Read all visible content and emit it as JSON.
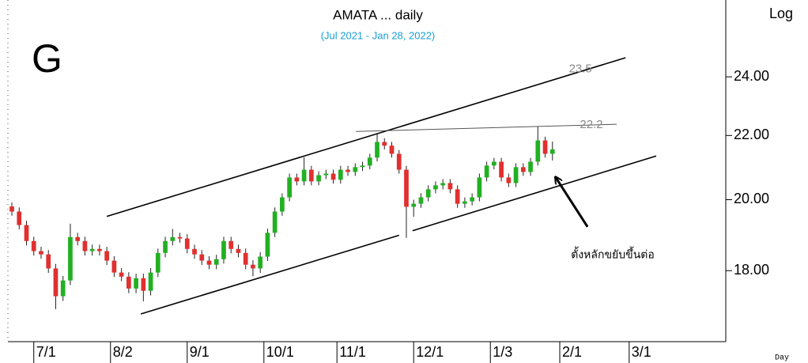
{
  "chart_data": {
    "type": "candlestick",
    "title": "AMATA ... daily",
    "subtitle": "(Jul 2021 - Jan 28, 2022)",
    "panel_label": "G",
    "scale_label": "Log",
    "x_axis_label": "Day",
    "log_scale": true,
    "up_color": "#22b022",
    "down_color": "#e0302f",
    "ylim": [
      16.2,
      26.9
    ],
    "yticks": [
      {
        "value": 18,
        "label": "18.00"
      },
      {
        "value": 20,
        "label": "20.00"
      },
      {
        "value": 22,
        "label": "22.00"
      },
      {
        "value": 24,
        "label": "24.00"
      }
    ],
    "xlim": [
      -3.25,
      195.45
    ],
    "xticks": [
      {
        "value": 6,
        "label": "7/1"
      },
      {
        "value": 27,
        "label": "8/2"
      },
      {
        "value": 48,
        "label": "9/1"
      },
      {
        "value": 69,
        "label": "10/1"
      },
      {
        "value": 89,
        "label": "11/1"
      },
      {
        "value": 110,
        "label": "12/1"
      },
      {
        "value": 131,
        "label": "1/3"
      },
      {
        "value": 150,
        "label": "2/1"
      },
      {
        "value": 169,
        "label": "3/1"
      }
    ],
    "x": [
      0,
      2,
      4,
      6,
      8,
      10,
      12,
      14,
      16,
      18,
      20,
      22,
      24,
      26,
      28,
      30,
      32,
      34,
      36,
      38,
      40,
      42,
      44,
      46,
      48,
      50,
      52,
      54,
      56,
      58,
      60,
      62,
      64,
      66,
      68,
      70,
      72,
      74,
      76,
      78,
      80,
      82,
      84,
      86,
      88,
      90,
      92,
      94,
      96,
      98,
      100,
      102,
      104,
      106,
      108,
      110,
      112,
      114,
      116,
      118,
      120,
      122,
      124,
      126,
      128,
      130,
      132,
      134,
      136,
      138,
      140,
      142,
      144,
      146,
      148
    ],
    "open": [
      19.8,
      19.65,
      19.26,
      18.81,
      18.53,
      18.44,
      18.06,
      17.33,
      17.74,
      18.92,
      18.81,
      18.53,
      18.59,
      18.53,
      18.27,
      17.95,
      17.84,
      17.53,
      17.8,
      17.47,
      17.95,
      18.48,
      18.81,
      18.92,
      18.88,
      18.59,
      18.44,
      18.27,
      18.16,
      18.31,
      18.81,
      18.59,
      18.48,
      18.16,
      18.06,
      18.38,
      19.04,
      19.65,
      20.07,
      20.67,
      20.55,
      20.91,
      20.55,
      20.74,
      20.79,
      20.6,
      20.91,
      20.84,
      20.99,
      21.04,
      21.29,
      21.79,
      21.67,
      21.41,
      20.91,
      19.79,
      19.88,
      20.07,
      20.31,
      20.43,
      20.5,
      20.31,
      19.88,
      19.95,
      20.07,
      20.67,
      21.04,
      21.16,
      20.67,
      20.5,
      20.99,
      20.84,
      21.16,
      21.84,
      21.41
    ],
    "high": [
      19.92,
      19.77,
      19.38,
      18.93,
      18.65,
      18.56,
      18.18,
      17.86,
      19.3,
      19.04,
      18.93,
      18.71,
      18.71,
      18.65,
      18.39,
      18.07,
      17.96,
      17.92,
      17.92,
      18.07,
      18.6,
      18.93,
      19.15,
      19.04,
      19.0,
      18.71,
      18.56,
      18.39,
      18.43,
      18.93,
      18.93,
      18.71,
      18.6,
      18.28,
      18.5,
      19.16,
      19.77,
      20.19,
      20.79,
      20.79,
      21.3,
      21.03,
      20.86,
      20.91,
      20.91,
      21.03,
      21.03,
      21.11,
      21.16,
      21.41,
      22.05,
      21.91,
      21.79,
      21.53,
      21.03,
      20.0,
      20.19,
      20.43,
      20.55,
      20.62,
      20.62,
      20.43,
      20.07,
      20.19,
      20.79,
      21.16,
      21.28,
      21.28,
      20.79,
      21.11,
      21.11,
      21.28,
      22.3,
      21.96,
      21.8
    ],
    "low": [
      19.53,
      19.14,
      18.69,
      18.41,
      18.32,
      17.94,
      17.0,
      17.21,
      17.62,
      18.69,
      18.41,
      18.41,
      18.41,
      18.15,
      17.83,
      17.72,
      17.41,
      17.41,
      17.2,
      17.35,
      17.83,
      18.36,
      18.69,
      18.76,
      18.47,
      18.32,
      18.15,
      18.04,
      18.04,
      18.19,
      18.47,
      18.36,
      18.04,
      17.85,
      17.94,
      18.26,
      18.92,
      19.53,
      19.95,
      20.43,
      20.43,
      20.43,
      20.43,
      20.62,
      20.48,
      20.48,
      20.72,
      20.72,
      20.87,
      20.92,
      21.17,
      21.55,
      21.29,
      20.79,
      18.9,
      19.5,
      19.76,
      19.95,
      20.19,
      20.31,
      20.19,
      19.76,
      19.76,
      19.83,
      19.95,
      20.55,
      20.92,
      20.55,
      20.38,
      20.38,
      20.72,
      20.72,
      21.04,
      21.29,
      21.2
    ],
    "close": [
      19.65,
      19.26,
      18.81,
      18.53,
      18.44,
      18.06,
      17.33,
      17.74,
      18.92,
      18.81,
      18.53,
      18.59,
      18.53,
      18.27,
      17.95,
      17.84,
      17.53,
      17.8,
      17.47,
      17.95,
      18.48,
      18.81,
      18.92,
      18.88,
      18.59,
      18.44,
      18.27,
      18.16,
      18.31,
      18.81,
      18.59,
      18.48,
      18.16,
      18.06,
      18.38,
      19.04,
      19.65,
      20.07,
      20.67,
      20.55,
      20.91,
      20.55,
      20.74,
      20.79,
      20.6,
      20.91,
      20.84,
      20.99,
      21.04,
      21.29,
      21.79,
      21.67,
      21.41,
      20.91,
      19.79,
      19.88,
      20.07,
      20.31,
      20.43,
      20.5,
      20.31,
      19.88,
      19.95,
      20.07,
      20.67,
      21.04,
      21.16,
      20.67,
      20.5,
      20.99,
      20.84,
      21.16,
      21.84,
      21.41,
      21.55
    ],
    "trendlines": [
      {
        "x": [
          26,
          168
        ],
        "y": [
          19.51,
          24.69
        ],
        "color": "#000"
      },
      {
        "x": [
          35.3,
          106
        ],
        "y": [
          16.88,
          18.97
        ],
        "color": "#000"
      },
      {
        "x": [
          109.7,
          176.4
        ],
        "y": [
          19.1,
          21.34
        ],
        "color": "#000"
      },
      {
        "x": [
          94.2,
          165.6
        ],
        "y": [
          22.13,
          22.37
        ],
        "color": "#555"
      }
    ],
    "annotations": [
      {
        "text": "23.5",
        "x": 152.5,
        "y": 24.28,
        "color": "#888"
      },
      {
        "text": "22.2",
        "x": 155.5,
        "y": 22.35,
        "color": "#888"
      },
      {
        "text": "ตั้งหลักขยับขึ้นต่อ",
        "x": 164.5,
        "y": 18.42,
        "color": "#000"
      }
    ],
    "arrow": {
      "x": [
        157.6,
        148.9
      ],
      "y": [
        19.21,
        20.67
      ]
    }
  }
}
